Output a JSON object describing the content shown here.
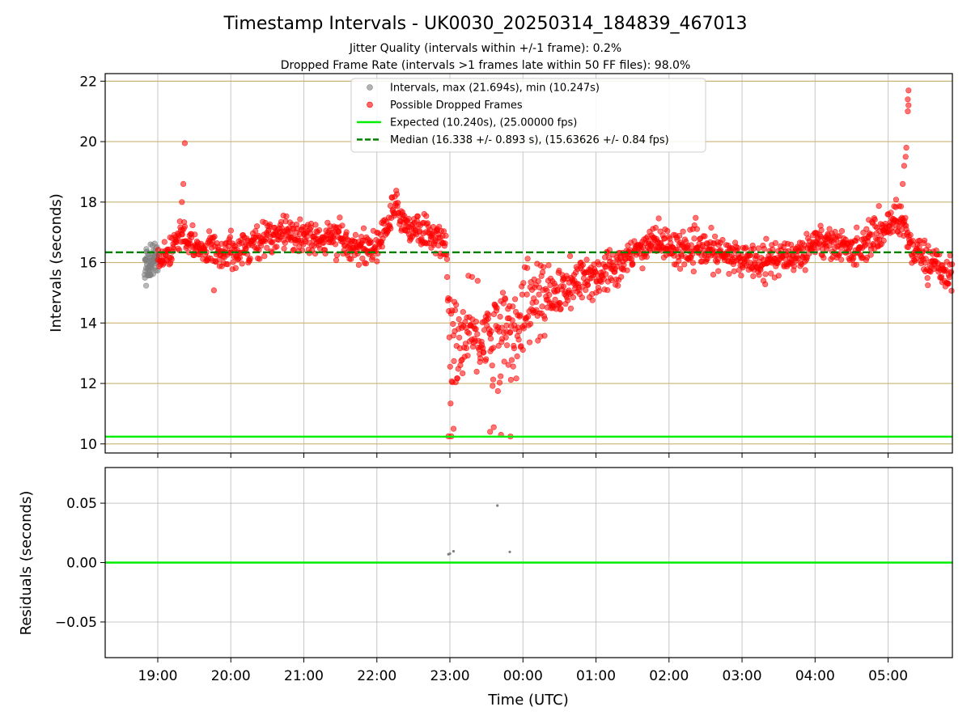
{
  "chart_data": [
    {
      "type": "scatter",
      "title": "Timestamp Intervals - UK0030_20250314_184839_467013",
      "subtitle_lines": [
        "Jitter Quality (intervals within +/-1 frame): 0.2%",
        "Dropped Frame Rate (intervals >1 frames late within 50 FF files): 98.0%"
      ],
      "ylabel": "Intervals (seconds)",
      "x_range_hours": [
        18.28,
        29.88
      ],
      "ylim": [
        9.7,
        22.25
      ],
      "yticks": [
        10,
        12,
        14,
        16,
        18,
        20,
        22
      ],
      "grid": true,
      "legend_position": "top-center",
      "legend": [
        {
          "label": "Intervals, max (21.694s), min (10.247s)",
          "kind": "point",
          "color": "#808080"
        },
        {
          "label": "Possible Dropped Frames",
          "kind": "point",
          "color": "#ff0000"
        },
        {
          "label": "Expected (10.240s), (25.00000 fps)",
          "kind": "line",
          "color": "#00ee00"
        },
        {
          "label": "Median (16.338 +/- 0.893 s), (15.63626 +/- 0.84 fps)",
          "kind": "dashed",
          "color": "#008000"
        }
      ],
      "reference_lines": {
        "expected": 10.24,
        "median": 16.338
      },
      "extremes": {
        "max": 21.694,
        "min": 10.247
      },
      "series": [
        {
          "name": "Intervals, max (21.694s), min (10.247s)",
          "color": "#808080",
          "trend": [
            [
              18.82,
              15.9
            ],
            [
              18.9,
              16.0
            ],
            [
              19.0,
              16.2
            ]
          ],
          "spread": 0.55,
          "count": 70
        },
        {
          "name": "Possible Dropped Frames",
          "color": "#ff0000",
          "trend": [
            [
              19.0,
              16.2
            ],
            [
              19.2,
              16.5
            ],
            [
              19.35,
              17.0
            ],
            [
              19.5,
              16.4
            ],
            [
              20.0,
              16.4
            ],
            [
              20.5,
              16.8
            ],
            [
              20.8,
              17.0
            ],
            [
              21.0,
              16.9
            ],
            [
              21.5,
              16.7
            ],
            [
              21.8,
              16.5
            ],
            [
              22.0,
              16.5
            ],
            [
              22.15,
              17.3
            ],
            [
              22.28,
              17.9
            ],
            [
              22.4,
              17.2
            ],
            [
              22.6,
              17.1
            ],
            [
              22.85,
              16.8
            ],
            [
              22.95,
              16.4
            ],
            [
              23.0,
              13.3
            ],
            [
              23.5,
              13.6
            ],
            [
              23.9,
              13.7
            ],
            [
              24.0,
              14.5
            ],
            [
              24.5,
              15.0
            ],
            [
              25.0,
              15.6
            ],
            [
              25.5,
              16.2
            ],
            [
              25.8,
              16.8
            ],
            [
              26.0,
              16.5
            ],
            [
              26.5,
              16.4
            ],
            [
              27.0,
              16.1
            ],
            [
              27.5,
              16.1
            ],
            [
              27.9,
              16.4
            ],
            [
              28.0,
              16.8
            ],
            [
              28.5,
              16.4
            ],
            [
              28.9,
              17.0
            ],
            [
              29.1,
              17.5
            ],
            [
              29.25,
              17.2
            ],
            [
              29.3,
              16.5
            ],
            [
              29.6,
              16.0
            ],
            [
              29.88,
              15.6
            ]
          ],
          "spread": 0.5,
          "count": 1700
        }
      ]
    },
    {
      "type": "scatter",
      "xlabel": "Time (UTC)",
      "ylabel": "Residuals (seconds)",
      "x_range_hours": [
        18.28,
        29.88
      ],
      "ylim": [
        -0.08,
        0.08
      ],
      "yticks": [
        0.05,
        0.0,
        -0.05
      ],
      "ytick_labels": [
        "0.05",
        "0.00",
        "−0.05"
      ],
      "xtick_hours": [
        19,
        20,
        21,
        22,
        23,
        24,
        25,
        26,
        27,
        28,
        29
      ],
      "xtick_labels": [
        "19:00",
        "20:00",
        "21:00",
        "22:00",
        "23:00",
        "00:00",
        "01:00",
        "02:00",
        "03:00",
        "04:00",
        "05:00"
      ],
      "grid": true,
      "zero_line_color": "#00ee00",
      "series": [
        {
          "color": "#808080",
          "points": [
            [
              22.98,
              0.007
            ],
            [
              23.0,
              0.0075
            ],
            [
              23.05,
              0.0095
            ],
            [
              23.65,
              0.048
            ],
            [
              23.82,
              0.009
            ]
          ]
        }
      ]
    }
  ]
}
